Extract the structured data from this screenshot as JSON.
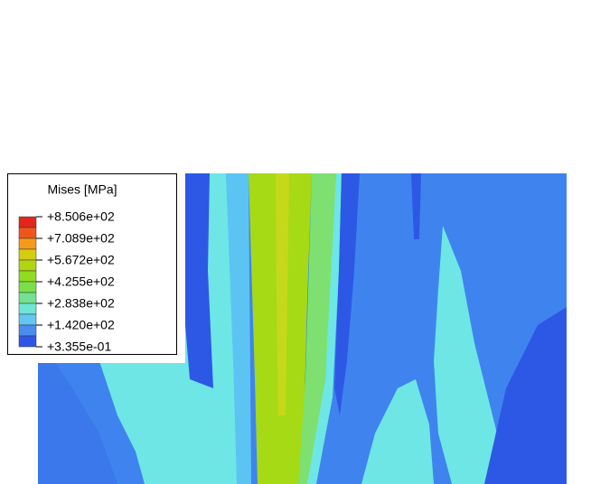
{
  "legend": {
    "title": "Mises [MPa]",
    "labels": [
      "+8.506e+02",
      "+7.089e+02",
      "+5.672e+02",
      "+4.255e+02",
      "+2.838e+02",
      "+1.420e+02",
      "+3.355e-01"
    ]
  }
}
